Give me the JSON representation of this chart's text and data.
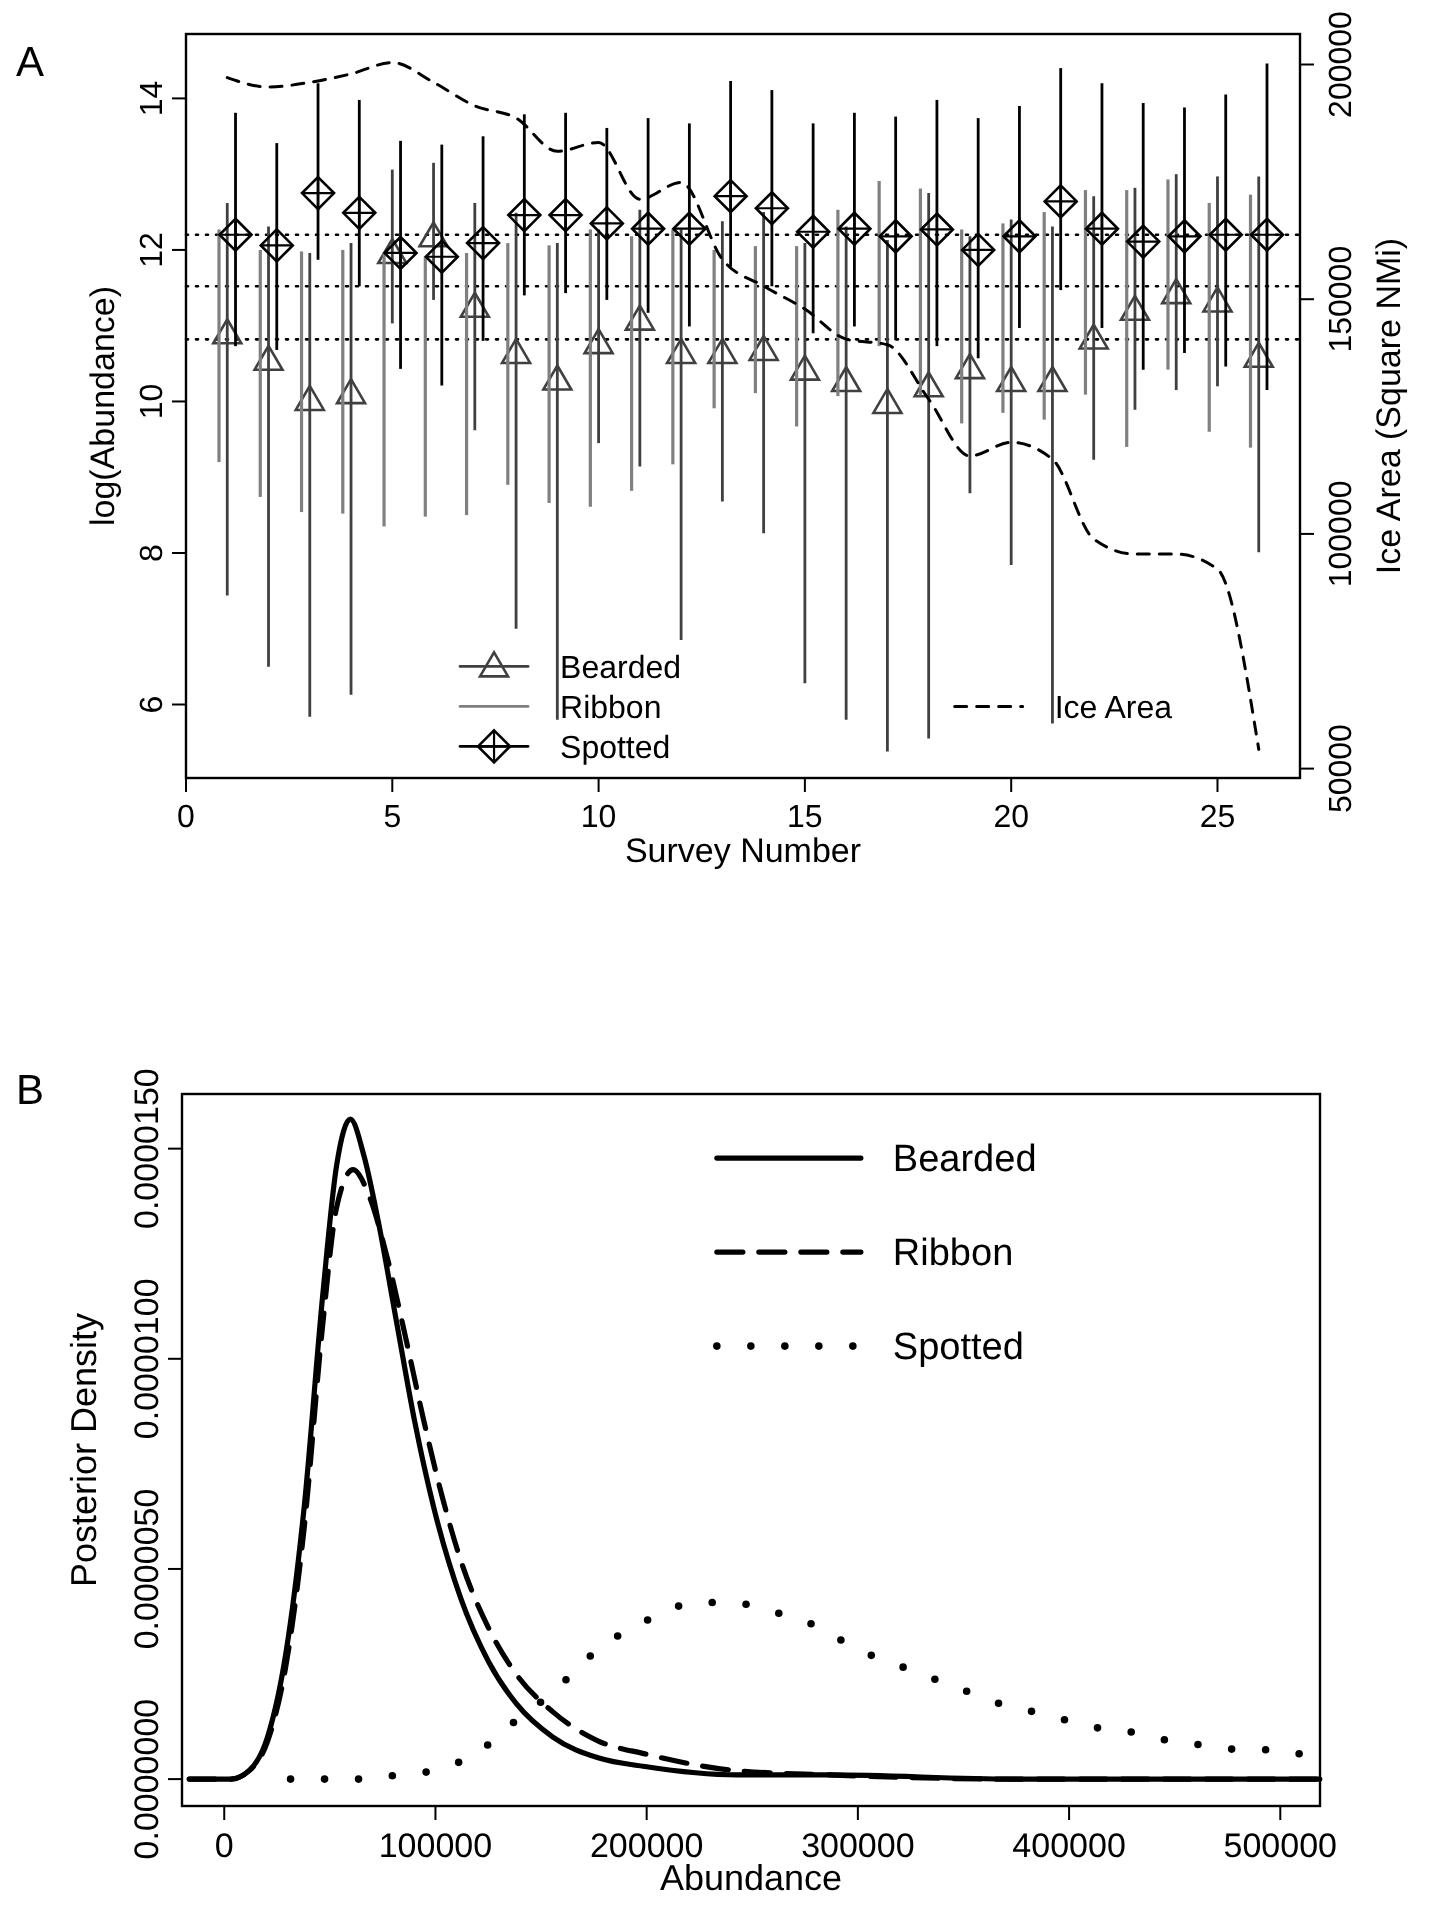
{
  "chart_data": [
    {
      "type": "scatter",
      "title": "A",
      "xlabel": "Survey Number",
      "ylabel": "log(Abundance)",
      "y2label": "Ice Area (Square NMi)",
      "xlim": [
        0,
        27
      ],
      "xticks": [
        0,
        5,
        10,
        15,
        20,
        25
      ],
      "ylim": [
        5.03,
        14.85
      ],
      "yticks": [
        6,
        8,
        10,
        12,
        14
      ],
      "y2lim": [
        48000,
        206500
      ],
      "y2ticks": [
        50000,
        100000,
        150000,
        200000
      ],
      "legend": "bottom",
      "ref_lines": [
        {
          "axis": "y",
          "value": 12.2,
          "line_style": "dotted"
        },
        {
          "axis": "y",
          "value": 11.52,
          "line_style": "dotted"
        },
        {
          "axis": "y",
          "value": 10.82,
          "line_style": "dotted"
        }
      ],
      "series": [
        {
          "name": "Bearded",
          "marker": "triangle",
          "color": "#404040",
          "x": [
            1,
            2,
            3,
            4,
            5,
            6,
            7,
            8,
            9,
            10,
            11,
            12,
            13,
            14,
            15,
            16,
            17,
            18,
            19,
            20,
            21,
            22,
            23,
            24,
            25,
            26
          ],
          "values": [
            10.9,
            10.55,
            10.02,
            10.11,
            11.96,
            12.18,
            11.25,
            10.64,
            10.29,
            10.77,
            11.08,
            10.64,
            10.64,
            10.68,
            10.42,
            10.27,
            9.98,
            10.2,
            10.44,
            10.27,
            10.27,
            10.83,
            11.21,
            11.43,
            11.32,
            10.59
          ],
          "errors": [
            [
              7.44,
              12.62
            ],
            [
              6.5,
              12.31
            ],
            [
              5.84,
              11.96
            ],
            [
              6.13,
              12.09
            ],
            [
              11.03,
              13.06
            ],
            [
              11.34,
              13.15
            ],
            [
              9.62,
              12.62
            ],
            [
              7.0,
              12.49
            ],
            [
              5.8,
              12.09
            ],
            [
              9.45,
              12.27
            ],
            [
              9.14,
              12.53
            ],
            [
              6.85,
              12.27
            ],
            [
              8.68,
              12.38
            ],
            [
              8.26,
              12.5
            ],
            [
              6.28,
              12.09
            ],
            [
              5.8,
              12.31
            ],
            [
              5.38,
              12.13
            ],
            [
              5.55,
              12.75
            ],
            [
              8.79,
              12.18
            ],
            [
              7.84,
              12.4
            ],
            [
              5.75,
              12.31
            ],
            [
              9.23,
              12.71
            ],
            [
              9.89,
              12.82
            ],
            [
              10.15,
              13.0
            ],
            [
              10.2,
              12.97
            ],
            [
              8.01,
              12.97
            ]
          ]
        },
        {
          "name": "Ribbon",
          "type": "bar",
          "color": "#808080",
          "x": [
            0.8,
            1.8,
            2.8,
            3.8,
            4.8,
            5.8,
            6.8,
            7.8,
            8.8,
            9.8,
            10.8,
            11.8,
            12.8,
            13.8,
            14.8,
            15.8,
            16.8,
            17.8,
            18.8,
            19.8,
            20.8,
            21.8,
            22.8,
            23.8,
            24.8,
            25.8
          ],
          "base": [
            9.2,
            8.74,
            8.54,
            8.52,
            8.35,
            8.48,
            8.5,
            8.9,
            8.66,
            8.61,
            8.82,
            9.17,
            9.91,
            10.11,
            9.67,
            10.07,
            10.73,
            10.08,
            9.71,
            9.85,
            9.76,
            10.09,
            9.4,
            10.42,
            9.6,
            9.39
          ],
          "values": [
            3.07,
            3.26,
            3.44,
            3.48,
            3.61,
            3.43,
            3.46,
            3.19,
            3.4,
            3.66,
            3.36,
            3.1,
            2.09,
            1.94,
            2.38,
            2.46,
            2.18,
            2.73,
            2.56,
            2.5,
            2.74,
            2.7,
            3.39,
            2.51,
            3.02,
            3.34
          ]
        },
        {
          "name": "Spotted",
          "marker": "diamond",
          "color": "#000000",
          "x": [
            1.2,
            2.2,
            3.2,
            4.2,
            5.2,
            6.2,
            7.2,
            8.2,
            9.2,
            10.2,
            11.2,
            12.2,
            13.2,
            14.2,
            15.2,
            16.2,
            17.2,
            18.2,
            19.2,
            20.2,
            21.2,
            22.2,
            23.2,
            24.2,
            25.2,
            26.2
          ],
          "values": [
            12.2,
            12.06,
            12.75,
            12.49,
            11.96,
            11.91,
            12.09,
            12.46,
            12.46,
            12.35,
            12.28,
            12.28,
            12.71,
            12.55,
            12.24,
            12.28,
            12.18,
            12.27,
            12.0,
            12.18,
            12.64,
            12.28,
            12.11,
            12.18,
            12.2,
            12.2
          ],
          "errors": [
            [
              10.73,
              13.81
            ],
            [
              10.68,
              13.41
            ],
            [
              11.87,
              14.2
            ],
            [
              11.52,
              13.98
            ],
            [
              10.43,
              13.44
            ],
            [
              10.21,
              13.39
            ],
            [
              10.8,
              13.5
            ],
            [
              11.4,
              13.79
            ],
            [
              11.43,
              13.81
            ],
            [
              11.34,
              13.61
            ],
            [
              11.17,
              13.74
            ],
            [
              10.99,
              13.67
            ],
            [
              11.78,
              14.23
            ],
            [
              11.52,
              14.11
            ],
            [
              10.9,
              13.67
            ],
            [
              10.99,
              13.81
            ],
            [
              10.81,
              13.76
            ],
            [
              10.73,
              13.98
            ],
            [
              10.57,
              13.74
            ],
            [
              10.97,
              13.9
            ],
            [
              11.47,
              14.4
            ],
            [
              10.97,
              14.2
            ],
            [
              10.42,
              13.94
            ],
            [
              10.64,
              13.88
            ],
            [
              10.46,
              14.05
            ],
            [
              10.15,
              14.46
            ]
          ]
        },
        {
          "name": "Ice Area",
          "type": "line",
          "axis": "y2",
          "line_style": "dashed",
          "color": "#000000",
          "x": [
            1,
            2,
            3,
            4,
            5,
            6,
            7,
            8,
            9,
            10,
            11,
            12,
            13,
            14,
            15,
            16,
            17,
            18,
            19,
            20,
            21,
            22,
            23,
            24,
            25,
            26
          ],
          "values": [
            197200,
            195200,
            196200,
            198000,
            200400,
            196200,
            191200,
            188600,
            181500,
            183400,
            171300,
            174900,
            158500,
            152800,
            147900,
            141500,
            140300,
            128700,
            116600,
            119500,
            115900,
            98900,
            95700,
            95700,
            92500,
            54100
          ]
        }
      ]
    },
    {
      "type": "line",
      "title": "B",
      "xlabel": "Abundance",
      "ylabel": "Posterior Density",
      "xlim": [
        -20000,
        518800
      ],
      "xticks": [
        0,
        100000,
        200000,
        300000,
        400000,
        500000
      ],
      "ylim": [
        -6.4e-07,
        1.63e-05
      ],
      "yticks": [
        {
          "value": 0,
          "label": "0.0000000"
        },
        {
          "value": 5e-06,
          "label": "0.0000050"
        },
        {
          "value": 1e-05,
          "label": "0.0000100"
        },
        {
          "value": 1.5e-05,
          "label": "0.0000150"
        }
      ],
      "legend": "top right",
      "series": [
        {
          "name": "Bearded",
          "line_style": "solid",
          "color": "#000000",
          "x": [
            -16500,
            3000,
            11800,
            20500,
            29200,
            37900,
            46600,
            53200,
            59700,
            66300,
            72800,
            81500,
            90200,
            99000,
            112000,
            125100,
            138200,
            155600,
            177400,
            199200,
            242800,
            286400,
            373600,
            518700
          ],
          "values": [
            0,
            0,
            2e-07,
            1e-06,
            3e-06,
            6.5e-06,
            1.15e-05,
            1.46e-05,
            1.57e-05,
            1.48e-05,
            1.33e-05,
            1.09e-05,
            8.5e-06,
            6.5e-06,
            4.3e-06,
            2.8e-06,
            1.8e-06,
            1e-06,
            5e-07,
            3e-07,
            1e-07,
            1e-07,
            0,
            0
          ]
        },
        {
          "name": "Ribbon",
          "line_style": "dashed",
          "color": "#000000",
          "x": [
            -16600,
            3100,
            11800,
            20500,
            29200,
            37900,
            46600,
            53200,
            61000,
            68400,
            77200,
            85900,
            94600,
            103300,
            112000,
            125100,
            138200,
            155600,
            177400,
            199200,
            242800,
            286400,
            373600,
            518700
          ],
          "values": [
            0,
            0,
            2e-07,
            9e-07,
            2.7e-06,
            6e-06,
            1.08e-05,
            1.36e-05,
            1.45e-05,
            1.39e-05,
            1.24e-05,
            1.05e-05,
            8.5e-06,
            6.7e-06,
            5.2e-06,
            3.6e-06,
            2.5e-06,
            1.6e-06,
            9e-07,
            6e-07,
            2e-07,
            1e-07,
            0,
            0
          ]
        },
        {
          "name": "Spotted",
          "line_style": "dotted",
          "color": "#000000",
          "x": [
            31400,
            48800,
            65400,
            82400,
            99000,
            115100,
            129500,
            140400,
            154300,
            166500,
            179600,
            194000,
            208800,
            224500,
            241500,
            257600,
            273300,
            288600,
            303800,
            319500,
            335200,
            350900,
            367000,
            383200,
            398900,
            415400,
            432000,
            448600,
            465100,
            481700,
            498300,
            514800
          ],
          "values": [
            0,
            0,
            0,
            1e-07,
            2e-07,
            5e-07,
            1e-06,
            1.5e-06,
            2e-06,
            2.6e-06,
            3.2e-06,
            3.6e-06,
            4e-06,
            4.2e-06,
            4.2e-06,
            4e-06,
            3.8e-06,
            3.4e-06,
            3e-06,
            2.7e-06,
            2.4e-06,
            2.1e-06,
            1.8e-06,
            1.6e-06,
            1.4e-06,
            1.2e-06,
            1.1e-06,
            9e-07,
            8e-07,
            7e-07,
            7e-07,
            5e-07
          ]
        }
      ]
    }
  ]
}
